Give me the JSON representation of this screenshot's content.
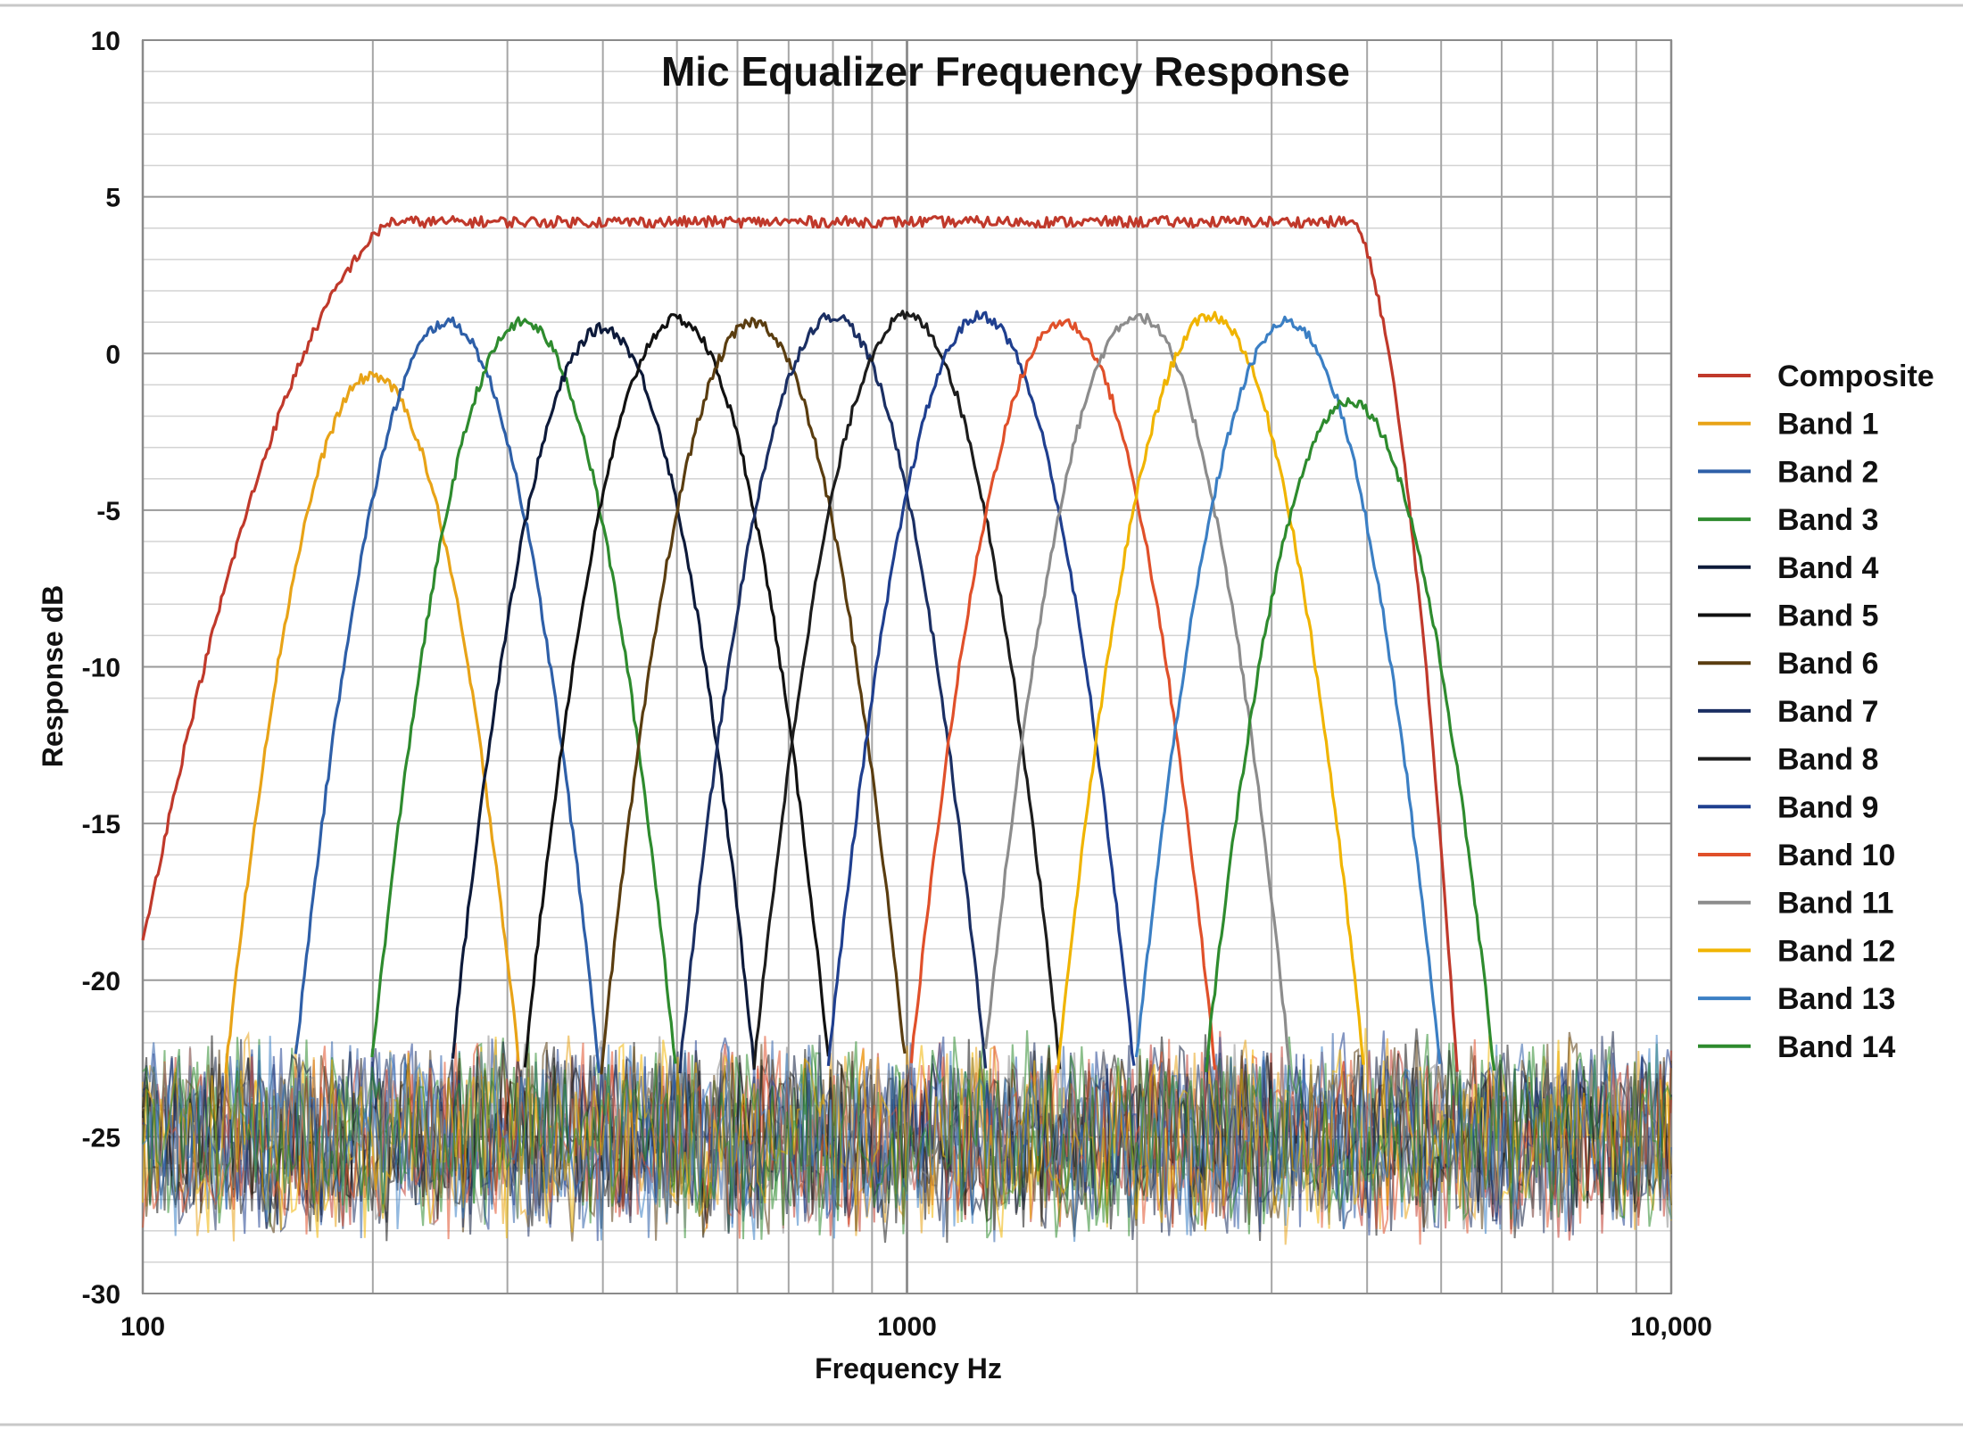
{
  "chart_data": {
    "type": "line",
    "title": "Mic Equalizer Frequency Response",
    "xlabel": "Frequency Hz",
    "ylabel": "Response dB",
    "xscale": "log",
    "xlim": [
      100,
      10000
    ],
    "ylim": [
      -30,
      10
    ],
    "x_ticks": [
      {
        "value": 100,
        "label": "100"
      },
      {
        "value": 1000,
        "label": "1000"
      },
      {
        "value": 10000,
        "label": "10,000"
      }
    ],
    "y_ticks": [
      {
        "value": 10,
        "label": "10"
      },
      {
        "value": 5,
        "label": "5"
      },
      {
        "value": 0,
        "label": "0"
      },
      {
        "value": -5,
        "label": "-5"
      },
      {
        "value": -10,
        "label": "-10"
      },
      {
        "value": -15,
        "label": "-15"
      },
      {
        "value": -20,
        "label": "-20"
      },
      {
        "value": -25,
        "label": "-25"
      },
      {
        "value": -30,
        "label": "-30"
      }
    ],
    "grid": true,
    "legend_position": "right",
    "noise_floor_db": -25,
    "series": [
      {
        "name": "Composite",
        "color": "#c0392b",
        "kind": "composite",
        "flat_db": 4.2,
        "low_hz": 210,
        "high_hz": 3850
      },
      {
        "name": "Band 1",
        "color": "#e8a317",
        "center_hz": 200,
        "peak_db": -0.7
      },
      {
        "name": "Band 2",
        "color": "#2e5fa8",
        "center_hz": 250,
        "peak_db": 1.0
      },
      {
        "name": "Band 3",
        "color": "#2e8b2e",
        "center_hz": 315,
        "peak_db": 1.0
      },
      {
        "name": "Band 4",
        "color": "#0d1a3a",
        "center_hz": 400,
        "peak_db": 0.8
      },
      {
        "name": "Band 5",
        "color": "#111111",
        "center_hz": 500,
        "peak_db": 1.1
      },
      {
        "name": "Band 6",
        "color": "#5a3d10",
        "center_hz": 630,
        "peak_db": 1.0
      },
      {
        "name": "Band 7",
        "color": "#1b2f63",
        "center_hz": 800,
        "peak_db": 1.2
      },
      {
        "name": "Band 8",
        "color": "#1c1c1c",
        "center_hz": 1000,
        "peak_db": 1.2
      },
      {
        "name": "Band 9",
        "color": "#1f3f8f",
        "center_hz": 1250,
        "peak_db": 1.2
      },
      {
        "name": "Band 10",
        "color": "#e0502a",
        "center_hz": 1600,
        "peak_db": 1.0
      },
      {
        "name": "Band 11",
        "color": "#8c8c8c",
        "center_hz": 2000,
        "peak_db": 1.2
      },
      {
        "name": "Band 12",
        "color": "#f0b400",
        "center_hz": 2500,
        "peak_db": 1.2
      },
      {
        "name": "Band 13",
        "color": "#3b7fc4",
        "center_hz": 3150,
        "peak_db": 1.0
      },
      {
        "name": "Band 14",
        "color": "#2e8b2e",
        "center_hz": 3800,
        "peak_db": -1.5
      }
    ]
  }
}
